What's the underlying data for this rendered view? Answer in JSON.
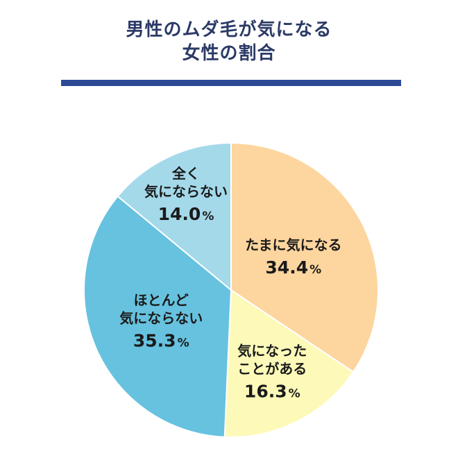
{
  "chart_data": {
    "type": "pie",
    "title_lines": [
      "男性のムダ毛が気になる",
      "女性の割合"
    ],
    "start": "12 o'clock",
    "direction": "clockwise",
    "legend": "none",
    "slices": [
      {
        "label_lines": [
          "たまに気になる"
        ],
        "value": 34.4,
        "display": "34.4",
        "unit": "%",
        "color": "#fdd59e"
      },
      {
        "label_lines": [
          "気になった",
          "ことがある"
        ],
        "value": 16.3,
        "display": "16.3",
        "unit": "%",
        "color": "#fdfab9"
      },
      {
        "label_lines": [
          "ほとんど",
          "気にならない"
        ],
        "value": 35.3,
        "display": "35.3",
        "unit": "%",
        "color": "#67c2df"
      },
      {
        "label_lines": [
          "全く",
          "気にならない"
        ],
        "value": 14.0,
        "display": "14.0",
        "unit": "%",
        "color": "#a4d9ea"
      }
    ]
  },
  "colors": {
    "title": "#2b3a66",
    "title_bar": "#2d4a96",
    "slice_border": "#ffffff"
  }
}
